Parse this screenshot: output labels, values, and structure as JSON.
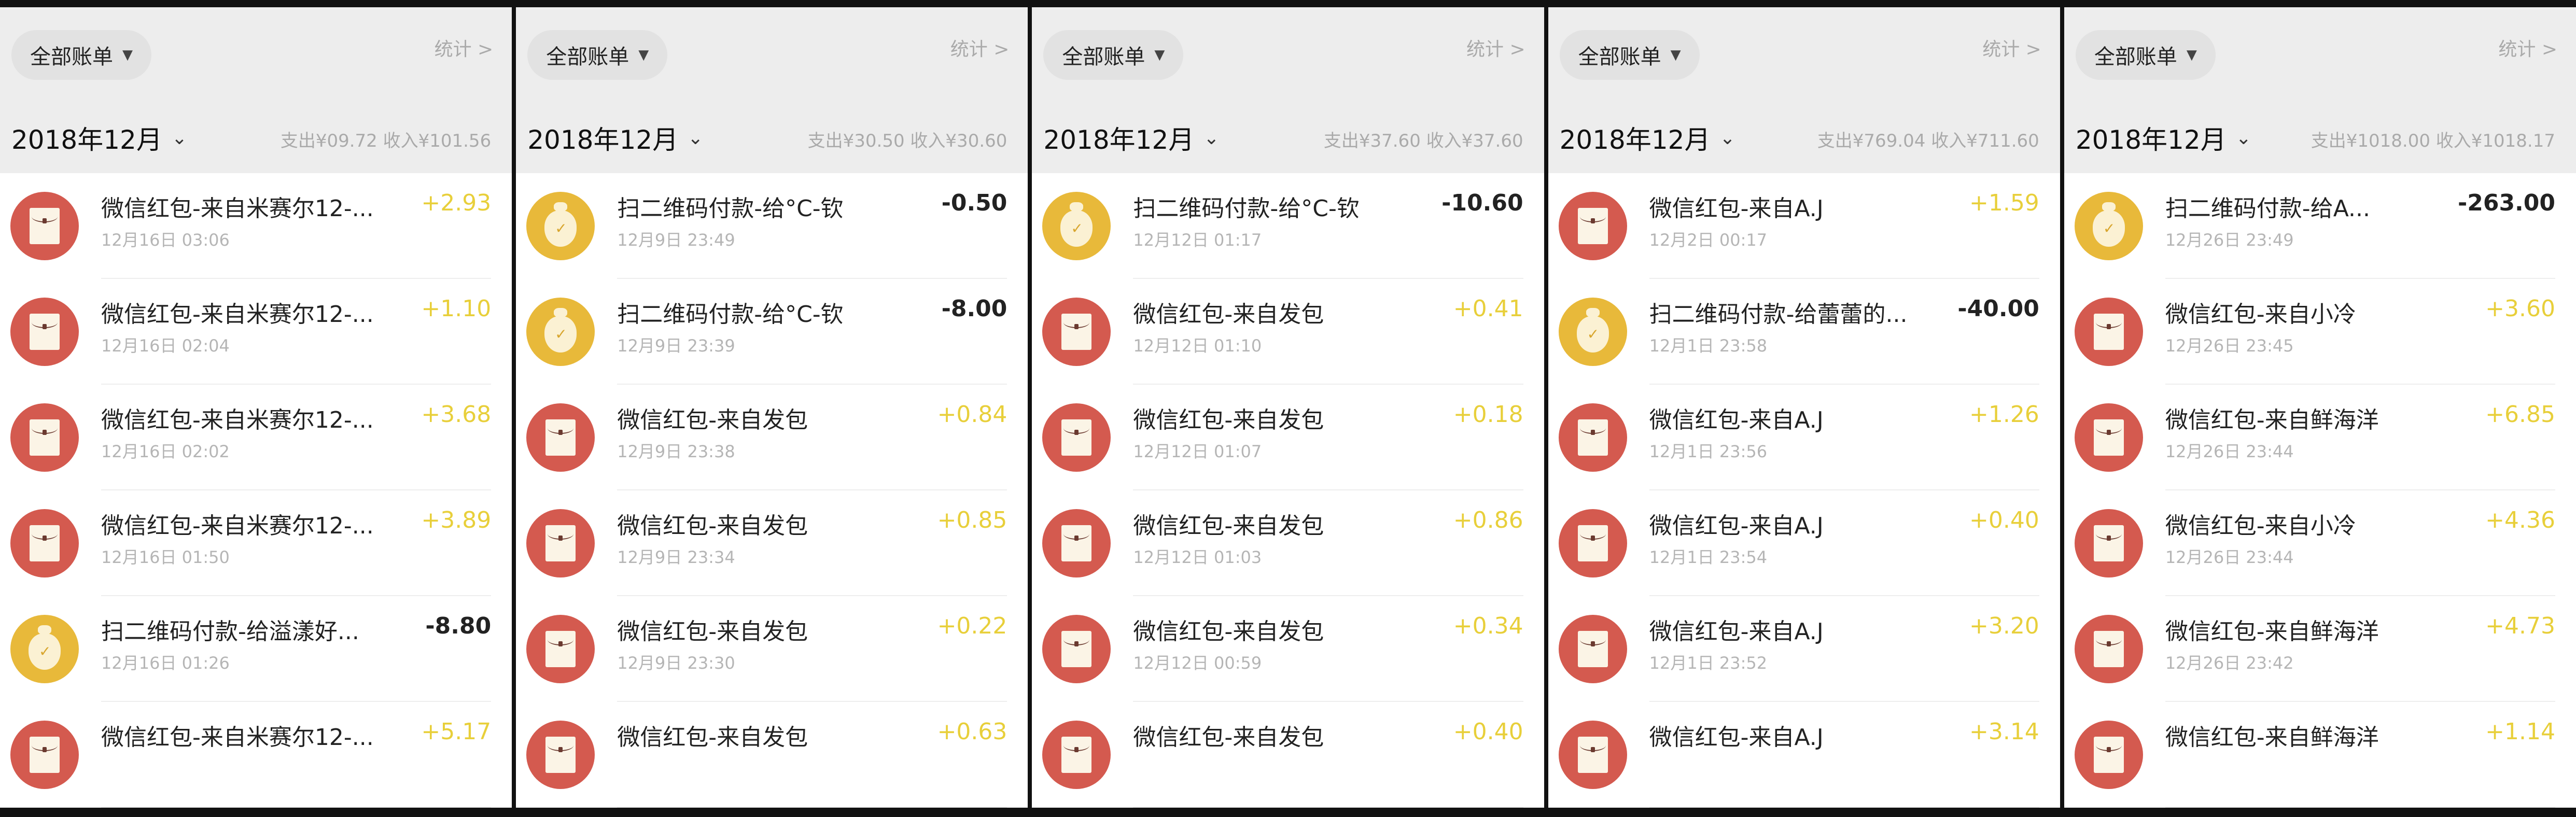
{
  "colors": {
    "header_bg": "#ededed",
    "income": "#e8cf3a",
    "red_packet_icon": "#d45a4f",
    "qr_pay_icon": "#e8b93a"
  },
  "panels": [
    {
      "filter_label": "全部账单",
      "stats_label": "统计 >",
      "month": "2018年12月",
      "summary": "支出¥09.72  收入¥101.56",
      "items": [
        {
          "icon": "red-packet-icon",
          "title": "微信红包-来自米赛尔12-...",
          "date": "12月16日 03:06",
          "amount": "+2.93",
          "income": true
        },
        {
          "icon": "red-packet-icon",
          "title": "微信红包-来自米赛尔12-...",
          "date": "12月16日 02:04",
          "amount": "+1.10",
          "income": true
        },
        {
          "icon": "red-packet-icon",
          "title": "微信红包-来自米赛尔12-...",
          "date": "12月16日 02:02",
          "amount": "+3.68",
          "income": true
        },
        {
          "icon": "red-packet-icon",
          "title": "微信红包-来自米赛尔12-...",
          "date": "12月16日 01:50",
          "amount": "+3.89",
          "income": true
        },
        {
          "icon": "money-bag-icon",
          "title": "扫二维码付款-给溢漾好...",
          "date": "12月16日 01:26",
          "amount": "-8.80",
          "income": false
        },
        {
          "icon": "red-packet-icon",
          "title": "微信红包-来自米赛尔12-...",
          "date": "",
          "amount": "+5.17",
          "income": true
        }
      ]
    },
    {
      "filter_label": "全部账单",
      "stats_label": "统计 >",
      "month": "2018年12月",
      "summary": "支出¥30.50  收入¥30.60",
      "items": [
        {
          "icon": "money-bag-icon",
          "title": "扫二维码付款-给°C-钦",
          "date": "12月9日 23:49",
          "amount": "-0.50",
          "income": false
        },
        {
          "icon": "money-bag-icon",
          "title": "扫二维码付款-给°C-钦",
          "date": "12月9日 23:39",
          "amount": "-8.00",
          "income": false
        },
        {
          "icon": "red-packet-icon",
          "title": "微信红包-来自发包",
          "date": "12月9日 23:38",
          "amount": "+0.84",
          "income": true
        },
        {
          "icon": "red-packet-icon",
          "title": "微信红包-来自发包",
          "date": "12月9日 23:34",
          "amount": "+0.85",
          "income": true
        },
        {
          "icon": "red-packet-icon",
          "title": "微信红包-来自发包",
          "date": "12月9日 23:30",
          "amount": "+0.22",
          "income": true
        },
        {
          "icon": "red-packet-icon",
          "title": "微信红包-来自发包",
          "date": "",
          "amount": "+0.63",
          "income": true
        }
      ]
    },
    {
      "filter_label": "全部账单",
      "stats_label": "统计 >",
      "month": "2018年12月",
      "summary": "支出¥37.60  收入¥37.60",
      "items": [
        {
          "icon": "money-bag-icon",
          "title": "扫二维码付款-给°C-钦",
          "date": "12月12日 01:17",
          "amount": "-10.60",
          "income": false
        },
        {
          "icon": "red-packet-icon",
          "title": "微信红包-来自发包",
          "date": "12月12日 01:10",
          "amount": "+0.41",
          "income": true
        },
        {
          "icon": "red-packet-icon",
          "title": "微信红包-来自发包",
          "date": "12月12日 01:07",
          "amount": "+0.18",
          "income": true
        },
        {
          "icon": "red-packet-icon",
          "title": "微信红包-来自发包",
          "date": "12月12日 01:03",
          "amount": "+0.86",
          "income": true
        },
        {
          "icon": "red-packet-icon",
          "title": "微信红包-来自发包",
          "date": "12月12日 00:59",
          "amount": "+0.34",
          "income": true
        },
        {
          "icon": "red-packet-icon",
          "title": "微信红包-来自发包",
          "date": "",
          "amount": "+0.40",
          "income": true
        }
      ]
    },
    {
      "filter_label": "全部账单",
      "stats_label": "统计 >",
      "month": "2018年12月",
      "summary": "支出¥769.04  收入¥711.60",
      "items": [
        {
          "icon": "red-packet-icon",
          "title": "微信红包-来自A.J",
          "date": "12月2日 00:17",
          "amount": "+1.59",
          "income": true
        },
        {
          "icon": "money-bag-icon",
          "title": "扫二维码付款-给蕾蕾的...",
          "date": "12月1日 23:58",
          "amount": "-40.00",
          "income": false
        },
        {
          "icon": "red-packet-icon",
          "title": "微信红包-来自A.J",
          "date": "12月1日 23:56",
          "amount": "+1.26",
          "income": true
        },
        {
          "icon": "red-packet-icon",
          "title": "微信红包-来自A.J",
          "date": "12月1日 23:54",
          "amount": "+0.40",
          "income": true
        },
        {
          "icon": "red-packet-icon",
          "title": "微信红包-来自A.J",
          "date": "12月1日 23:52",
          "amount": "+3.20",
          "income": true
        },
        {
          "icon": "red-packet-icon",
          "title": "微信红包-来自A.J",
          "date": "",
          "amount": "+3.14",
          "income": true
        }
      ]
    },
    {
      "filter_label": "全部账单",
      "stats_label": "统计 >",
      "month": "2018年12月",
      "summary": "支出¥1018.00  收入¥1018.17",
      "items": [
        {
          "icon": "money-bag-icon",
          "title": "扫二维码付款-给A...",
          "date": "12月26日 23:49",
          "amount": "-263.00",
          "income": false
        },
        {
          "icon": "red-packet-icon",
          "title": "微信红包-来自小冷",
          "date": "12月26日 23:45",
          "amount": "+3.60",
          "income": true
        },
        {
          "icon": "red-packet-icon",
          "title": "微信红包-来自鲜海洋",
          "date": "12月26日 23:44",
          "amount": "+6.85",
          "income": true
        },
        {
          "icon": "red-packet-icon",
          "title": "微信红包-来自小冷",
          "date": "12月26日 23:44",
          "amount": "+4.36",
          "income": true
        },
        {
          "icon": "red-packet-icon",
          "title": "微信红包-来自鲜海洋",
          "date": "12月26日 23:42",
          "amount": "+4.73",
          "income": true
        },
        {
          "icon": "red-packet-icon",
          "title": "微信红包-来自鲜海洋",
          "date": "",
          "amount": "+1.14",
          "income": true
        }
      ]
    }
  ]
}
